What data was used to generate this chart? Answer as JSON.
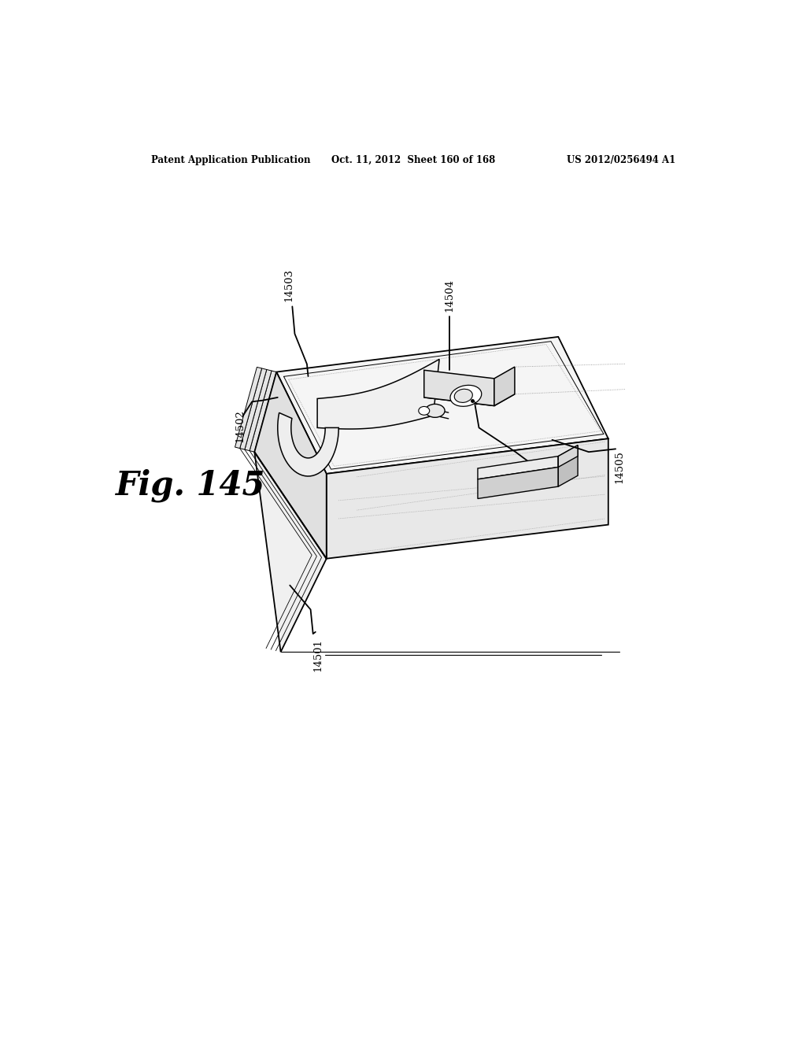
{
  "bg_color": "#ffffff",
  "header_left": "Patent Application Publication",
  "header_mid": "Oct. 11, 2012  Sheet 160 of 168",
  "header_right": "US 2012/0256494 A1",
  "fig_label": "Fig. 145",
  "line_color": "#000000",
  "fill_top": "#f5f5f5",
  "fill_front": "#e8e8e8",
  "fill_left": "#e0e0e0",
  "fill_device_top": "#efefef",
  "fill_device_front": "#e2e2e2",
  "fill_device_right": "#d5d5d5",
  "fill_slot": "#d0d0d0"
}
